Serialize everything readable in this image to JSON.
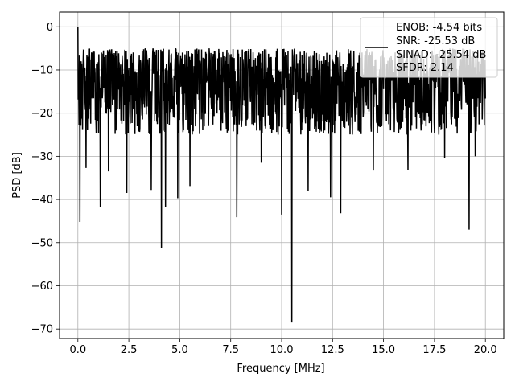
{
  "chart_data": {
    "type": "line",
    "xlabel": "Frequency [MHz]",
    "ylabel": "PSD [dB]",
    "xlim": [
      -0.9,
      20.9
    ],
    "ylim": [
      -72.2,
      3.4
    ],
    "xticks": [
      0.0,
      2.5,
      5.0,
      7.5,
      10.0,
      12.5,
      15.0,
      17.5,
      20.0
    ],
    "xtick_labels": [
      "0.0",
      "2.5",
      "5.0",
      "7.5",
      "10.0",
      "12.5",
      "15.0",
      "17.5",
      "20.0"
    ],
    "yticks": [
      0,
      -10,
      -20,
      -30,
      -40,
      -50,
      -60,
      -70
    ],
    "ytick_labels": [
      "0",
      "−10",
      "−20",
      "−30",
      "−40",
      "−50",
      "−60",
      "−70"
    ],
    "grid": true,
    "legend_placement": "upper-right",
    "series": [
      {
        "color": "#000000",
        "noise_floor": {
          "max": -5,
          "min": -25,
          "center": -14
        },
        "peaks": [
          {
            "x": 0.0,
            "y": 0.0
          }
        ],
        "dips": [
          {
            "x": 0.1,
            "y": -45.2
          },
          {
            "x": 0.4,
            "y": -32.7
          },
          {
            "x": 1.1,
            "y": -41.7
          },
          {
            "x": 1.5,
            "y": -33.5
          },
          {
            "x": 2.4,
            "y": -38.5
          },
          {
            "x": 3.6,
            "y": -37.8
          },
          {
            "x": 4.1,
            "y": -51.3
          },
          {
            "x": 4.3,
            "y": -41.8
          },
          {
            "x": 4.9,
            "y": -39.7
          },
          {
            "x": 5.5,
            "y": -36.9
          },
          {
            "x": 7.8,
            "y": -44.1
          },
          {
            "x": 9.0,
            "y": -31.5
          },
          {
            "x": 10.0,
            "y": -43.5
          },
          {
            "x": 10.5,
            "y": -68.5
          },
          {
            "x": 11.3,
            "y": -38.1
          },
          {
            "x": 12.4,
            "y": -39.5
          },
          {
            "x": 12.9,
            "y": -43.2
          },
          {
            "x": 14.5,
            "y": -33.3
          },
          {
            "x": 16.2,
            "y": -33.2
          },
          {
            "x": 18.0,
            "y": -30.5
          },
          {
            "x": 19.2,
            "y": -47.0
          },
          {
            "x": 19.5,
            "y": -30.0
          }
        ]
      }
    ],
    "legend": {
      "lines": [
        "ENOB: -4.54 bits",
        "SNR: -25.53 dB",
        "SINAD: -25.54 dB",
        "SFDR: 2.14"
      ],
      "line_color": "#000000"
    }
  }
}
